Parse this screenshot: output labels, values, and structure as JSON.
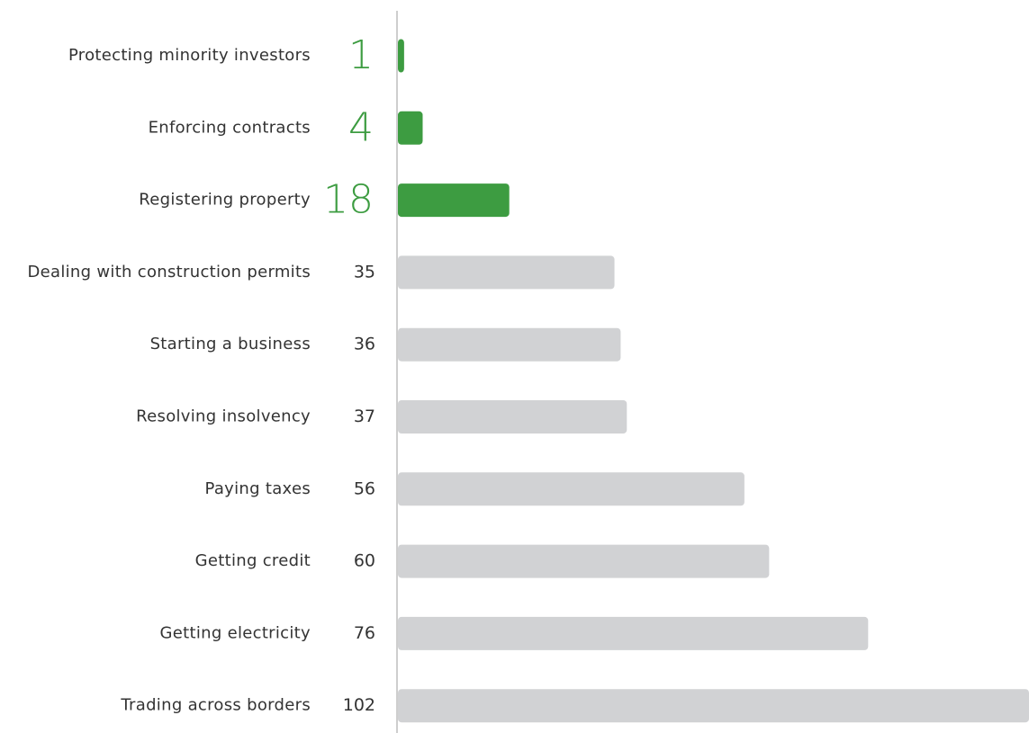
{
  "chart_data": {
    "type": "bar",
    "orientation": "horizontal",
    "categories": [
      "Protecting minority investors",
      "Enforcing contracts",
      "Registering property",
      "Dealing with construction permits",
      "Starting a business",
      "Resolving insolvency",
      "Paying taxes",
      "Getting credit",
      "Getting electricity",
      "Trading across borders"
    ],
    "values": [
      1,
      4,
      18,
      35,
      36,
      37,
      56,
      60,
      76,
      102
    ],
    "colors": [
      "#3d9c41",
      "#3d9c41",
      "#3d9c41",
      "#d1d2d4",
      "#d1d2d4",
      "#d1d2d4",
      "#d1d2d4",
      "#d1d2d4",
      "#d1d2d4",
      "#d1d2d4"
    ],
    "label_colors": [
      "#3d9c41",
      "#3d9c41",
      "#3d9c41",
      "#333333",
      "#333333",
      "#333333",
      "#333333",
      "#333333",
      "#333333",
      "#333333"
    ],
    "xlim": [
      0,
      102
    ]
  }
}
